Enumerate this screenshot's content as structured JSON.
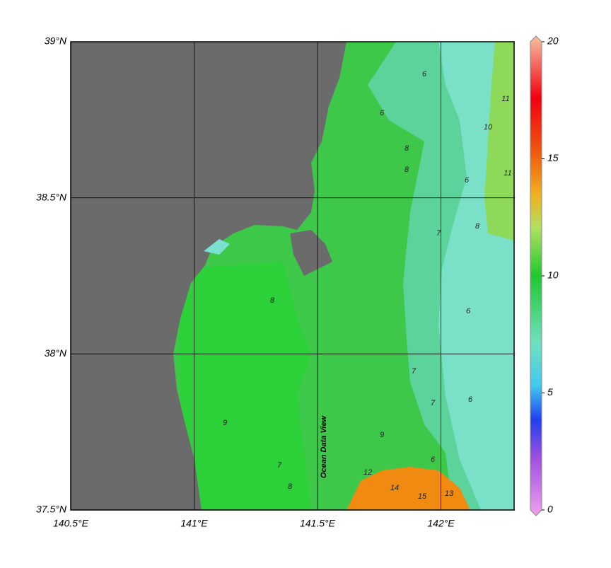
{
  "map": {
    "xlim": [
      140.5,
      142.3
    ],
    "ylim": [
      37.5,
      39
    ],
    "xticks": [
      {
        "value": 140.5,
        "label": "140.5°E"
      },
      {
        "value": 141,
        "label": "141°E"
      },
      {
        "value": 141.5,
        "label": "141.5°E"
      },
      {
        "value": 142,
        "label": "142°E"
      }
    ],
    "yticks": [
      {
        "value": 37.5,
        "label": "37.5°N"
      },
      {
        "value": 38,
        "label": "38°N"
      },
      {
        "value": 38.5,
        "label": "38.5°N"
      },
      {
        "value": 39,
        "label": "39°N"
      }
    ],
    "grid": true,
    "colorbar": {
      "lim": [
        0,
        20
      ],
      "ticks": [
        0,
        5,
        10,
        15,
        20
      ],
      "label": "Ocean Data View"
    },
    "contour_labels": [
      6,
      6,
      8,
      8,
      11,
      10,
      11,
      6,
      8,
      7,
      6,
      8,
      9,
      7,
      7,
      7,
      9,
      8,
      6,
      12,
      14,
      15,
      13,
      6
    ]
  }
}
